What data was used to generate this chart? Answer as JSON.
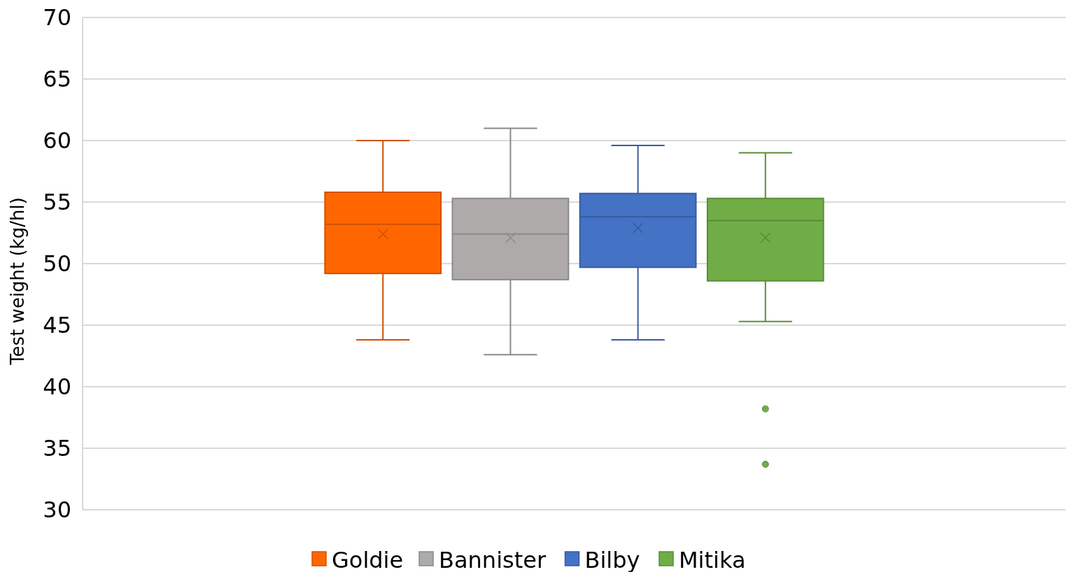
{
  "chart_data": {
    "type": "box",
    "ylabel": "Test weight (kg/hl)",
    "categories": [
      null
    ],
    "ylim": [
      30,
      70
    ],
    "yticks": [
      30,
      35,
      40,
      45,
      50,
      55,
      60,
      65,
      70
    ],
    "grid": "y",
    "legend": "bottom",
    "tick_labels": "y",
    "series": [
      {
        "name": "Goldie",
        "color": "#ff6600",
        "boxes": [
          {
            "low": 43.8,
            "q1": 49.2,
            "median": 53.2,
            "q3": 55.8,
            "high": 60.0,
            "mean": 52.4
          }
        ]
      },
      {
        "name": "Bannister",
        "color": "#aeaaaa",
        "boxes": [
          {
            "low": 42.6,
            "q1": 48.7,
            "median": 52.4,
            "q3": 55.3,
            "high": 61.0,
            "mean": 52.1
          }
        ]
      },
      {
        "name": "Bilby",
        "color": "#4472c4",
        "boxes": [
          {
            "low": 43.8,
            "q1": 49.7,
            "median": 53.8,
            "q3": 55.7,
            "high": 59.6,
            "mean": 52.9
          }
        ]
      },
      {
        "name": "Mitika",
        "color": "#70ad47",
        "boxes": [
          {
            "low": 45.3,
            "q1": 48.6,
            "median": 53.5,
            "q3": 55.3,
            "high": 59.0,
            "mean": 52.1,
            "outliers": [
              38.2,
              33.7
            ]
          }
        ]
      }
    ]
  }
}
